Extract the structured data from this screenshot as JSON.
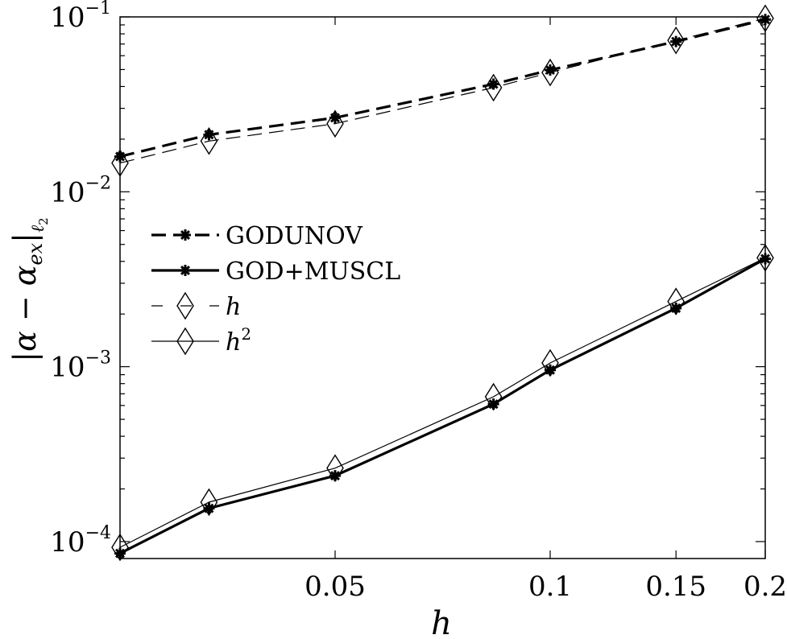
{
  "chart_data": {
    "type": "line",
    "xscale": "log",
    "yscale": "log",
    "xlabel": "h",
    "ylabel": "|α − α_ex|_ℓ2",
    "xlim": [
      0.025,
      0.2
    ],
    "ylim": [
      8e-05,
      0.1
    ],
    "xticks": [
      0.05,
      0.1,
      0.15,
      0.2
    ],
    "xtick_labels": [
      "0.05",
      "0.1",
      "0.15",
      "0.2"
    ],
    "yticks": [
      0.0001,
      0.001,
      0.01,
      0.1
    ],
    "ytick_labels": [
      {
        "base": "10",
        "exp": "−4"
      },
      {
        "base": "10",
        "exp": "−3"
      },
      {
        "base": "10",
        "exp": "−2"
      },
      {
        "base": "10",
        "exp": "−1"
      }
    ],
    "grid": false,
    "legend_position": "center-left",
    "series": [
      {
        "name": "GODUNOV",
        "style": "dashed-thick",
        "marker": "asterisk",
        "x": [
          0.025,
          0.0333,
          0.05,
          0.0833,
          0.1,
          0.15,
          0.2
        ],
        "y": [
          0.0159,
          0.0212,
          0.0265,
          0.0413,
          0.0497,
          0.0723,
          0.0966
        ]
      },
      {
        "name": "GOD+MUSCL",
        "style": "solid-thick",
        "marker": "asterisk",
        "x": [
          0.025,
          0.0333,
          0.05,
          0.0833,
          0.1,
          0.15,
          0.2
        ],
        "y": [
          8.56e-05,
          0.000155,
          0.000238,
          0.000611,
          0.000957,
          0.00216,
          0.00414
        ]
      },
      {
        "name": "h",
        "style": "dashed-thin",
        "marker": "diamond",
        "x": [
          0.025,
          0.0333,
          0.05,
          0.0833,
          0.1,
          0.15,
          0.2
        ],
        "y": [
          0.0146,
          0.0195,
          0.0245,
          0.0394,
          0.0481,
          0.0734,
          0.0981
        ]
      },
      {
        "name": "h²",
        "style": "solid-thin",
        "marker": "diamond",
        "x": [
          0.025,
          0.0333,
          0.05,
          0.0833,
          0.1,
          0.15,
          0.2
        ],
        "y": [
          9.27e-05,
          0.000168,
          0.000263,
          0.000673,
          0.00105,
          0.00236,
          0.00419
        ]
      }
    ],
    "legend": {
      "items": [
        {
          "label": "GODUNOV",
          "italic": false,
          "sup": ""
        },
        {
          "label": "GOD+MUSCL",
          "italic": false,
          "sup": ""
        },
        {
          "label": "h",
          "italic": true,
          "sup": ""
        },
        {
          "label": "h",
          "italic": true,
          "sup": "2"
        }
      ]
    },
    "colors": {
      "line": "#000000",
      "background": "#ffffff"
    }
  }
}
